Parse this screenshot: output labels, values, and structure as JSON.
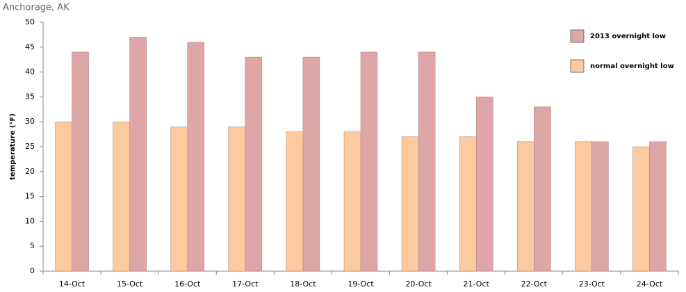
{
  "chart_data": {
    "type": "bar",
    "title": "Anchorage, AK",
    "y_label": "temperature (°F)",
    "categories": [
      "14-Oct",
      "15-Oct",
      "16-Oct",
      "17-Oct",
      "18-Oct",
      "19-Oct",
      "20-Oct",
      "21-Oct",
      "22-Oct",
      "23-Oct",
      "24-Oct"
    ],
    "series": [
      {
        "name": "2013 overnight low",
        "color": "#dfa6a7",
        "values": [
          44,
          47,
          46,
          43,
          43,
          44,
          44,
          35,
          33,
          26,
          26
        ]
      },
      {
        "name": "normal overnight low",
        "color": "#fdca9f",
        "values": [
          30,
          30,
          29,
          29,
          28,
          28,
          27,
          27,
          26,
          26,
          25
        ]
      }
    ],
    "ylim": [
      0,
      50
    ],
    "yticks": [
      0,
      5,
      10,
      15,
      20,
      25,
      30,
      35,
      40,
      45,
      50
    ],
    "legend": "upper right"
  }
}
